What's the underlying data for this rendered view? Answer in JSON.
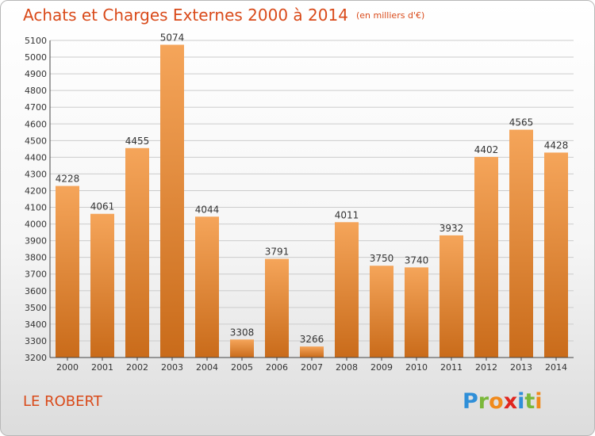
{
  "header": {
    "title": "Achats et Charges Externes 2000 à 2014",
    "unit": "(en milliers d'€)"
  },
  "footer": {
    "place": "LE ROBERT",
    "logo": {
      "letters": [
        "P",
        "r",
        "o",
        "x",
        "i",
        "t",
        "i"
      ],
      "colors": [
        "#2f8fd8",
        "#7ab83a",
        "#f08a1c",
        "#e0261f",
        "#2f8fd8",
        "#7ab83a",
        "#f08a1c"
      ]
    }
  },
  "colors": {
    "bar_top": "#f5a55a",
    "bar_bottom": "#c96b1a",
    "title": "#d94a1a",
    "grid": "#cccccc"
  },
  "chart_data": {
    "type": "bar",
    "title": "Achats et Charges Externes 2000 à 2014",
    "subtitle": "(en milliers d'€)",
    "xlabel": "",
    "ylabel": "",
    "categories": [
      "2000",
      "2001",
      "2002",
      "2003",
      "2004",
      "2005",
      "2006",
      "2007",
      "2008",
      "2009",
      "2010",
      "2011",
      "2012",
      "2013",
      "2014"
    ],
    "values": [
      4228,
      4061,
      4455,
      5074,
      4044,
      3308,
      3791,
      3266,
      4011,
      3750,
      3740,
      3932,
      4402,
      4565,
      4428
    ],
    "ylim": [
      3200,
      5100
    ],
    "yticks": [
      3200,
      3300,
      3400,
      3500,
      3600,
      3700,
      3800,
      3900,
      4000,
      4100,
      4200,
      4300,
      4400,
      4500,
      4600,
      4700,
      4800,
      4900,
      5000,
      5100
    ],
    "grid": true,
    "data_labels": true
  }
}
